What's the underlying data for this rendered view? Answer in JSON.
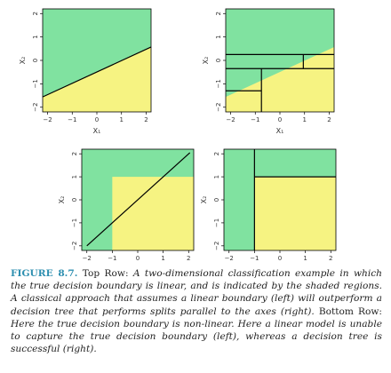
{
  "figure": {
    "colors": {
      "green": "#80e2a0",
      "yellow": "#f6f382",
      "line": "#000000"
    },
    "axis": {
      "xlabel": "X₁",
      "ylabel": "X₂",
      "xticks": [
        "−2",
        "−1",
        "0",
        "1",
        "2"
      ],
      "yticks": [
        "−2",
        "−1",
        "0",
        "1",
        "2"
      ],
      "range": [
        -2.2,
        2.2
      ]
    },
    "panels": [
      {
        "name": "top-left",
        "description_shape": "linear boundary",
        "boundary_line": [
          [
            -2.2,
            -1.56
          ],
          [
            2.2,
            0.57
          ]
        ]
      },
      {
        "name": "top-right",
        "description_shape": "tree approximation of linear boundary",
        "yellow_polygon": [
          [
            -2.2,
            -2.2
          ],
          [
            -2.2,
            -1.56
          ],
          [
            2.2,
            0.57
          ],
          [
            2.2,
            -2.2
          ]
        ],
        "tree_splits": [
          [
            [
              -2.2,
              0.25
            ],
            [
              2.2,
              0.25
            ]
          ],
          [
            [
              -2.2,
              -0.35
            ],
            [
              2.2,
              -0.35
            ]
          ],
          [
            [
              0.95,
              0.25
            ],
            [
              0.95,
              -0.35
            ]
          ],
          [
            [
              -0.75,
              -0.35
            ],
            [
              -0.75,
              -2.2
            ]
          ],
          [
            [
              -2.2,
              -1.3
            ],
            [
              -0.75,
              -1.3
            ]
          ]
        ]
      },
      {
        "name": "bottom-left",
        "description_shape": "rectangular boundary with linear fit",
        "yellow_rect": {
          "x1": -1.0,
          "x2": 2.2,
          "y1": -2.2,
          "y2": 1.0
        },
        "boundary_line": [
          [
            -2.0,
            -2.0
          ],
          [
            2.05,
            2.05
          ]
        ]
      },
      {
        "name": "bottom-right",
        "description_shape": "rectangular boundary with tree splits",
        "yellow_rect": {
          "x1": -1.0,
          "x2": 2.2,
          "y1": -2.2,
          "y2": 1.0
        },
        "tree_splits": [
          [
            [
              -1.0,
              -2.2
            ],
            [
              -1.0,
              2.2
            ]
          ],
          [
            [
              -1.0,
              1.0
            ],
            [
              2.2,
              1.0
            ]
          ]
        ]
      }
    ]
  },
  "caption": {
    "label": "FIGURE 8.7.",
    "parts": [
      {
        "t": "Top Row: ",
        "s": "rm"
      },
      {
        "t": "A two-dimensional classification example in which the true decision boundary is linear, and is indicated by the shaded regions. A classical approach that assumes a linear boundary (left) will outperform a decision tree that performs splits parallel to the axes (right).",
        "s": "it"
      },
      {
        "t": " Bottom Row: ",
        "s": "rm"
      },
      {
        "t": "Here the true decision boundary is non-linear. Here a linear model is unable to capture the true decision boundary (left), whereas a decision tree is successful (right).",
        "s": "it"
      }
    ]
  }
}
